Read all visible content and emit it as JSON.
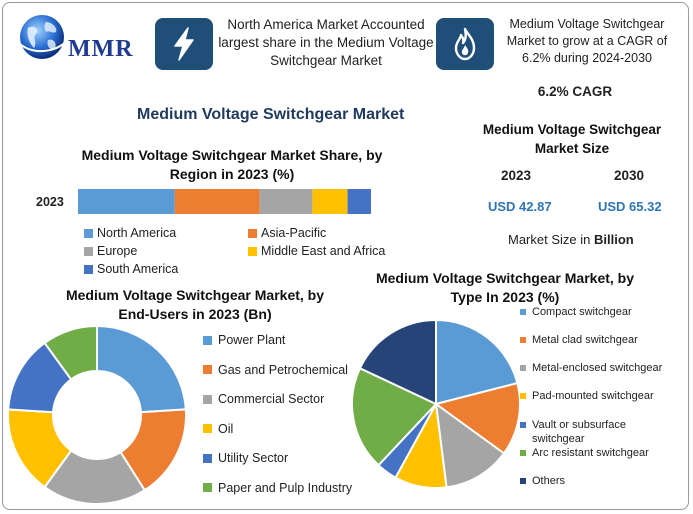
{
  "header": {
    "logo_text": "MMR",
    "middle_text": "North America Market Accounted largest share in the Medium Voltage Switchgear Market",
    "right_text": "Medium Voltage Switchgear Market to grow at a CAGR of 6.2% during 2024-2030",
    "middle_icon": "lightning-bolt-icon",
    "right_icon": "flame-icon"
  },
  "main_title": "Medium Voltage Switchgear Market",
  "cagr": "6.2% CAGR",
  "market_size": {
    "title": "Medium Voltage Switchgear Market Size",
    "year1": "2023",
    "year2": "2030",
    "value1": "USD 42.87",
    "value2": "USD 65.32",
    "unit_prefix": "Market Size in ",
    "unit_bold": "Billion"
  },
  "colors": {
    "blue": "#5b9bd5",
    "orange": "#ed7d31",
    "gray": "#a5a5a5",
    "yellow": "#ffc000",
    "darkblue": "#4472c4",
    "green": "#70ad47",
    "navy": "#264478",
    "header_icon_bg": "#1f4e79"
  },
  "chart_data": [
    {
      "type": "bar",
      "subtype": "stacked-horizontal-100",
      "title": "Medium Voltage Switchgear Market Share, by Region in 2023 (%)",
      "categories": [
        "2023"
      ],
      "series": [
        {
          "name": "North America",
          "values": [
            33
          ]
        },
        {
          "name": "Asia-Pacific",
          "values": [
            29
          ]
        },
        {
          "name": "Europe",
          "values": [
            18
          ]
        },
        {
          "name": "Middle East and Africa",
          "values": [
            12
          ]
        },
        {
          "name": "South America",
          "values": [
            8
          ]
        }
      ],
      "legend": "bottom"
    },
    {
      "type": "pie",
      "subtype": "donut",
      "title": "Medium Voltage Switchgear Market, by End-Users in 2023 (Bn)",
      "labels": [
        "Power Plant",
        "Gas and Petrochemical",
        "Commercial Sector",
        "Oil",
        "Utility Sector",
        "Paper and Pulp Industry"
      ],
      "values": [
        24,
        17,
        19,
        16,
        14,
        10
      ],
      "legend": "right"
    },
    {
      "type": "pie",
      "title": "Medium Voltage Switchgear Market, by Type In 2023 (%)",
      "labels": [
        "Compact switchgear",
        "Metal clad switchgear",
        "Metal-enclosed switchgear",
        "Pad-mounted switchgear",
        "Vault or subsurface switchgear",
        "Arc resistant switchgear",
        "Others"
      ],
      "values": [
        21,
        14,
        13,
        10,
        4,
        20,
        18
      ],
      "legend": "right"
    }
  ]
}
